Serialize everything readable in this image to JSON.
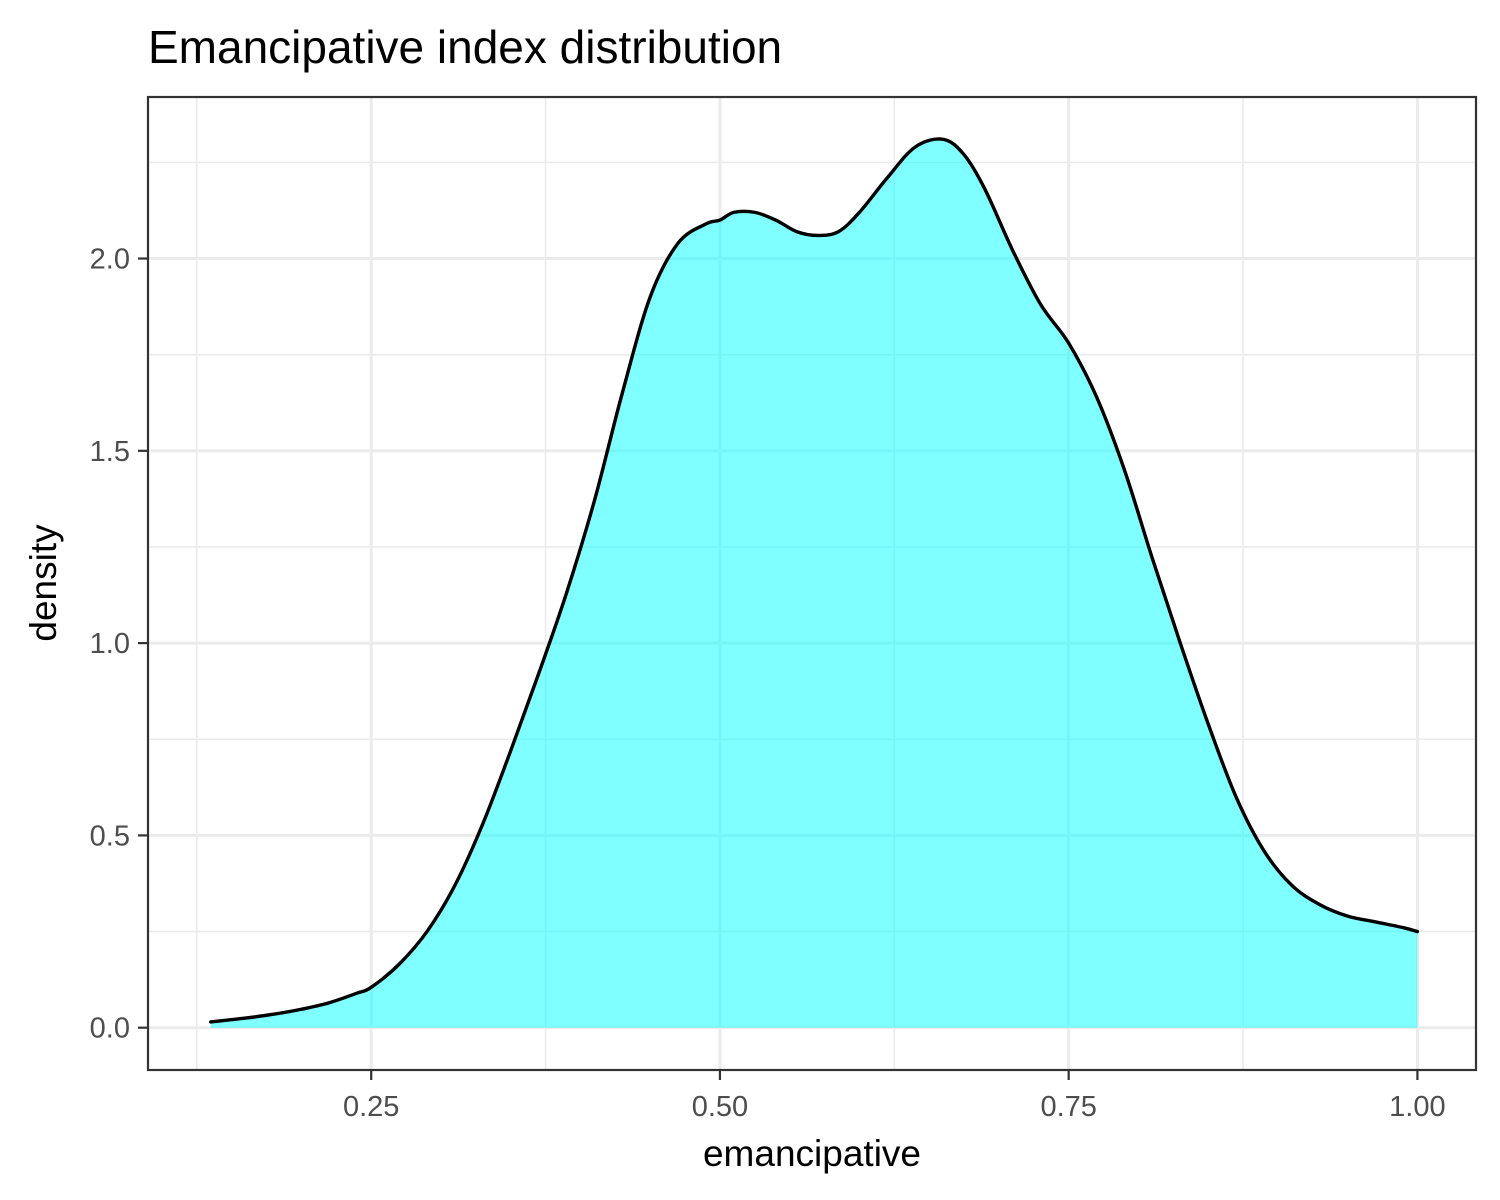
{
  "chart_data": {
    "type": "area",
    "title": "Emancipative index distribution",
    "xlabel": "emancipative",
    "ylabel": "density",
    "xlim": [
      0.09,
      1.042
    ],
    "ylim": [
      -0.11,
      2.42
    ],
    "x_ticks": [
      0.25,
      0.5,
      0.75,
      1.0
    ],
    "x_tick_labels": [
      "0.25",
      "0.50",
      "0.75",
      "1.00"
    ],
    "x_minor_ticks": [
      0.125,
      0.375,
      0.625,
      0.875
    ],
    "y_ticks": [
      0.0,
      0.5,
      1.0,
      1.5,
      2.0
    ],
    "y_tick_labels": [
      "0.0",
      "0.5",
      "1.0",
      "1.5",
      "2.0"
    ],
    "y_minor_ticks": [
      0.25,
      0.75,
      1.25,
      1.75,
      2.25
    ],
    "grid": true,
    "legend": "none",
    "fill_color": "#00FFFF",
    "fill_opacity": 0.5,
    "line_color": "#000000",
    "series": [
      {
        "x": [
          0.135,
          0.16,
          0.18,
          0.2,
          0.22,
          0.24,
          0.25,
          0.27,
          0.29,
          0.31,
          0.33,
          0.35,
          0.37,
          0.39,
          0.41,
          0.43,
          0.45,
          0.47,
          0.49,
          0.5,
          0.51,
          0.525,
          0.54,
          0.555,
          0.57,
          0.585,
          0.6,
          0.62,
          0.64,
          0.66,
          0.675,
          0.69,
          0.71,
          0.73,
          0.75,
          0.77,
          0.79,
          0.81,
          0.83,
          0.85,
          0.87,
          0.89,
          0.91,
          0.93,
          0.95,
          0.97,
          0.99,
          1.0
        ],
        "y": [
          0.015,
          0.025,
          0.035,
          0.048,
          0.065,
          0.09,
          0.105,
          0.165,
          0.25,
          0.37,
          0.53,
          0.72,
          0.92,
          1.13,
          1.37,
          1.65,
          1.9,
          2.04,
          2.09,
          2.1,
          2.12,
          2.12,
          2.1,
          2.07,
          2.06,
          2.07,
          2.12,
          2.21,
          2.29,
          2.31,
          2.27,
          2.18,
          2.02,
          1.88,
          1.78,
          1.64,
          1.45,
          1.22,
          1.0,
          0.79,
          0.6,
          0.46,
          0.37,
          0.32,
          0.29,
          0.275,
          0.26,
          0.25
        ]
      }
    ]
  }
}
